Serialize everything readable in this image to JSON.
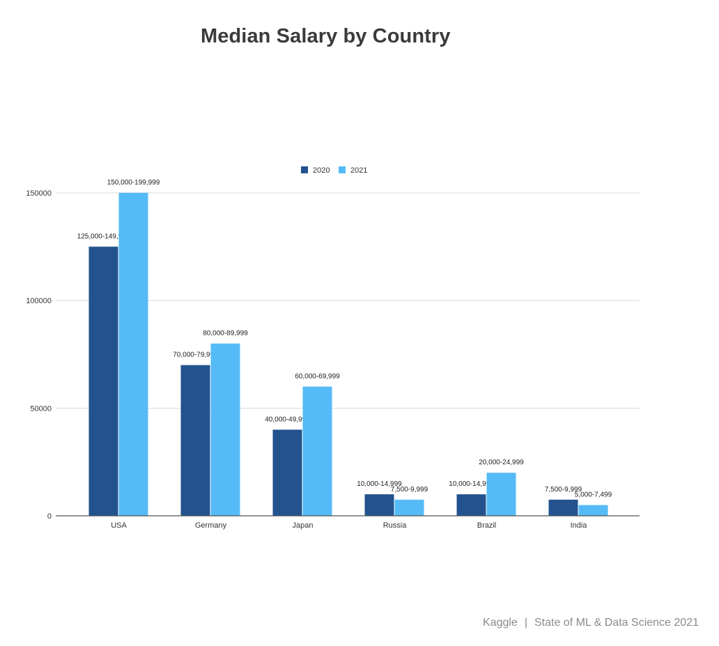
{
  "chart_data": {
    "type": "bar",
    "title": "Median Salary by Country",
    "categories": [
      "USA",
      "Germany",
      "Japan",
      "Russia",
      "Brazil",
      "India"
    ],
    "series": [
      {
        "name": "2020",
        "color": "#23538f",
        "values": [
          125000,
          70000,
          40000,
          10000,
          10000,
          7500
        ],
        "labels": [
          "125,000-149,999",
          "70,000-79,999",
          "40,000-49,999",
          "10,000-14,999",
          "10,000-14,999",
          "7,500-9,999"
        ]
      },
      {
        "name": "2021",
        "color": "#55bbf7",
        "values": [
          150000,
          80000,
          60000,
          7500,
          20000,
          5000
        ],
        "labels": [
          "150,000-199,999",
          "80,000-89,999",
          "60,000-69,999",
          "7,500-9,999",
          "20,000-24,999",
          "5,000-7,499"
        ]
      }
    ],
    "ylim": [
      0,
      150000
    ],
    "yticks": [
      0,
      50000,
      100000,
      150000
    ],
    "ytick_labels": [
      "0",
      "50000",
      "100000",
      "150000"
    ],
    "grid": true,
    "legend": "top-center"
  },
  "footer": {
    "source": "Kaggle",
    "separator": "|",
    "report": "State of ML & Data Science 2021"
  }
}
